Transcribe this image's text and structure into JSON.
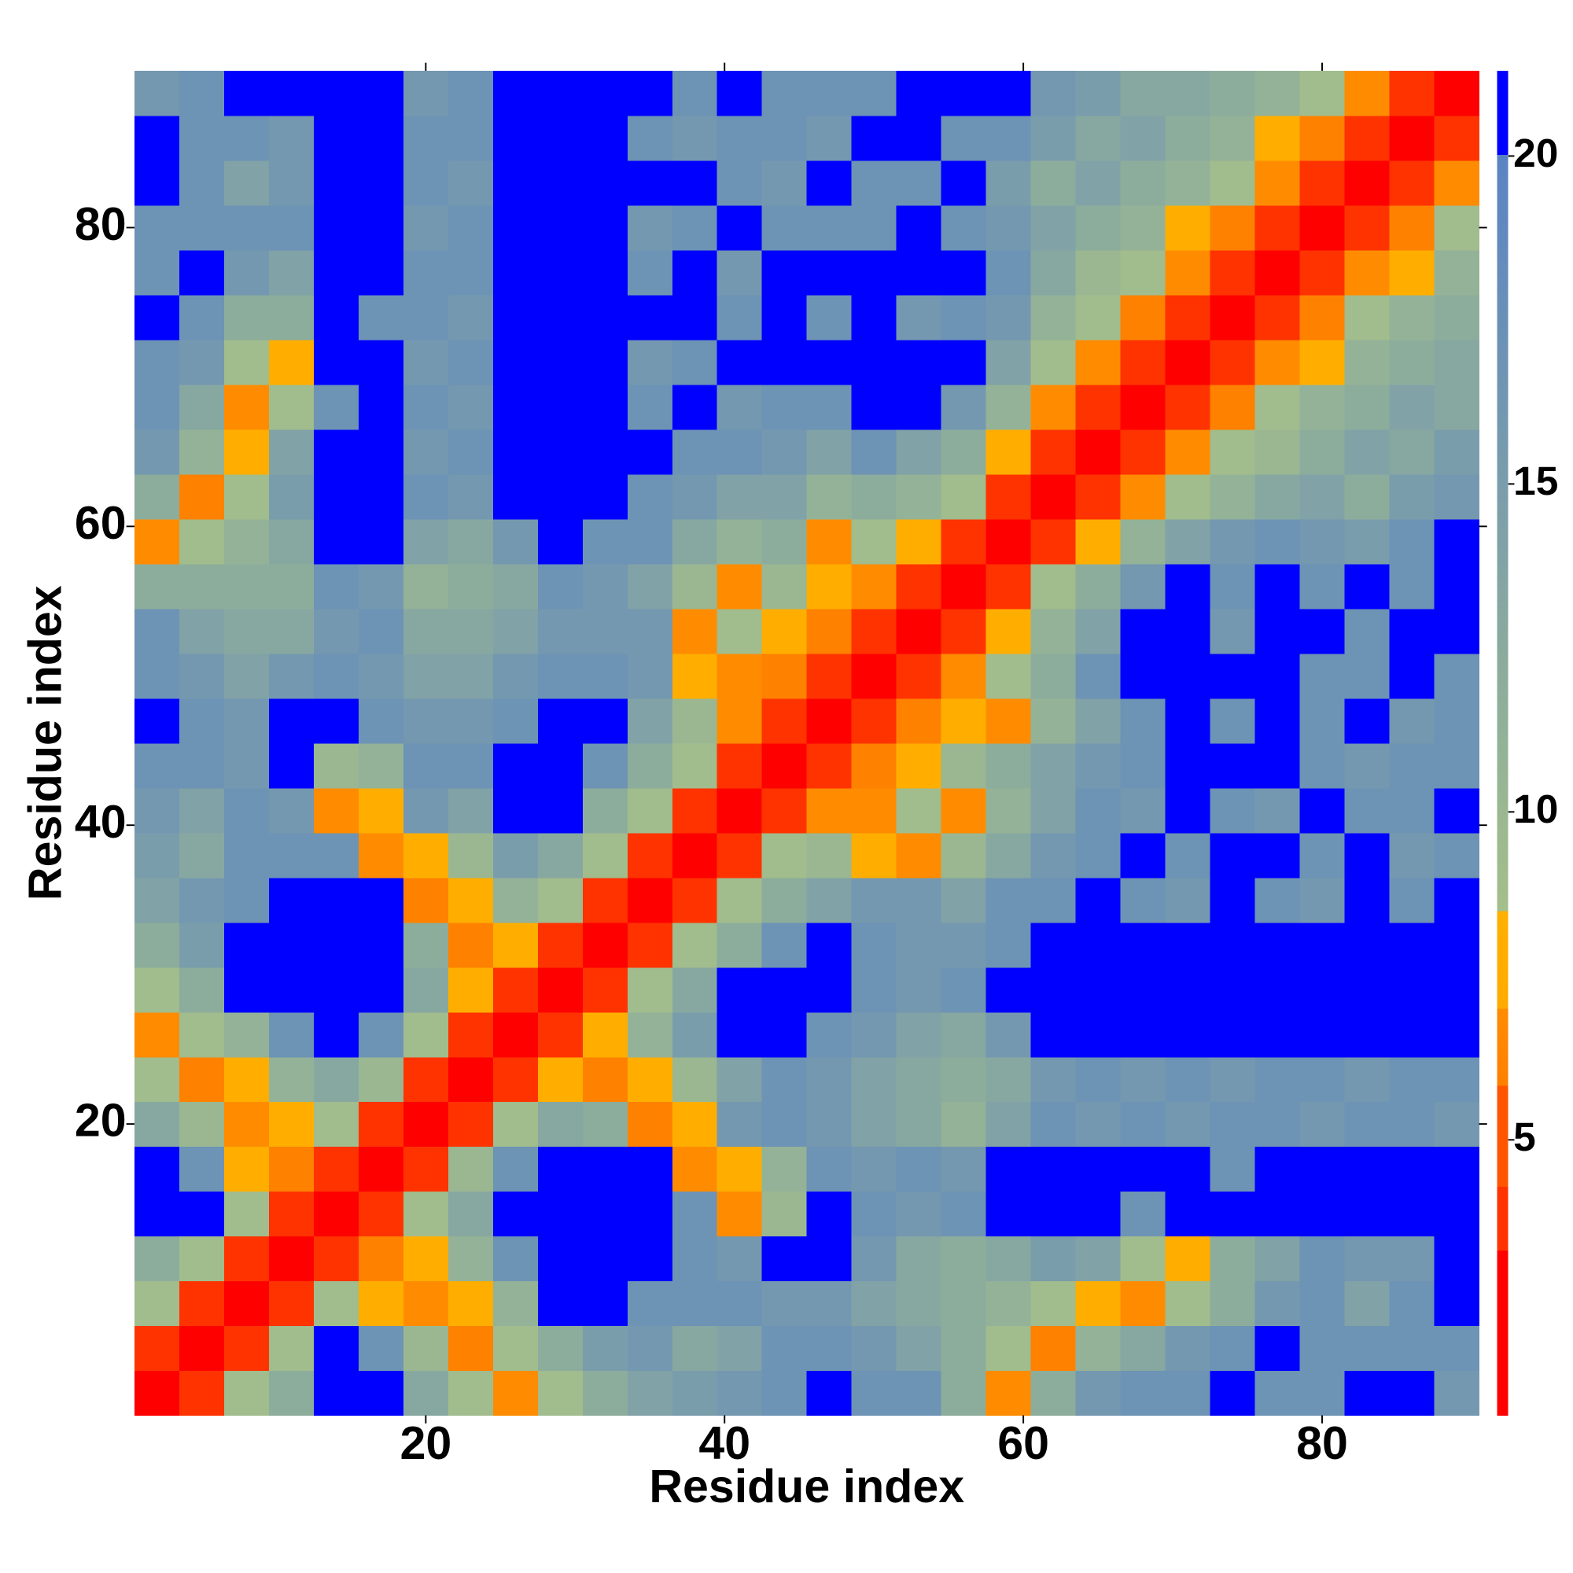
{
  "chart_data": {
    "type": "heatmap",
    "xlabel": "Residue index",
    "ylabel": "Residue index",
    "x": [
      2,
      5,
      8,
      11,
      14,
      17,
      20,
      23,
      26,
      29,
      32,
      35,
      38,
      41,
      44,
      47,
      50,
      53,
      56,
      59,
      62,
      65,
      68,
      71,
      74,
      77,
      80,
      83,
      86,
      89
    ],
    "y": [
      2,
      5,
      8,
      11,
      14,
      17,
      20,
      23,
      26,
      29,
      32,
      35,
      38,
      41,
      44,
      47,
      50,
      53,
      56,
      59,
      62,
      65,
      68,
      71,
      74,
      77,
      80,
      83,
      86,
      89
    ],
    "xlim": [
      0.5,
      90.5
    ],
    "ylim": [
      0.5,
      90.5
    ],
    "xticks": [
      20,
      40,
      60,
      80
    ],
    "yticks": [
      20,
      40,
      60,
      80
    ],
    "zlim": [
      0.8,
      21.3
    ],
    "zticks": [
      5,
      10,
      15,
      20
    ],
    "colorscale": [
      [
        0.8,
        "#ff0000"
      ],
      [
        3.3,
        "#ff0000"
      ],
      [
        3.3,
        "#ff3300"
      ],
      [
        4.3,
        "#ff3300"
      ],
      [
        4.3,
        "#ff5500"
      ],
      [
        5.8,
        "#ff5500"
      ],
      [
        5.8,
        "#ff7f00"
      ],
      [
        7,
        "#ff8c00"
      ],
      [
        7,
        "#ffaa00"
      ],
      [
        8.5,
        "#ffb000"
      ],
      [
        8.5,
        "#a4bf8a"
      ],
      [
        20,
        "#5a83c4"
      ],
      [
        20,
        "#0000ff"
      ],
      [
        21.3,
        "#0000ff"
      ]
    ],
    "z": [
      [
        2,
        4,
        9,
        12,
        21,
        21,
        13,
        9,
        7,
        9,
        12,
        14,
        15,
        16,
        17,
        21,
        17,
        17,
        12,
        7,
        12,
        16,
        17,
        17,
        21,
        17,
        17,
        21,
        21,
        16
      ],
      [
        4,
        2,
        4,
        9,
        21,
        17,
        10,
        6,
        9,
        12,
        15,
        16,
        13,
        14,
        17,
        17,
        16,
        14,
        12,
        9,
        6,
        11,
        13,
        16,
        17,
        21,
        17,
        17,
        17,
        17
      ],
      [
        9,
        4,
        2,
        4,
        9,
        8,
        7,
        8,
        11,
        21,
        21,
        17,
        17,
        17,
        16,
        16,
        14,
        13,
        12,
        11,
        9,
        8,
        7,
        9,
        12,
        16,
        17,
        14,
        17,
        21
      ],
      [
        12,
        9,
        4,
        2,
        4,
        6,
        8,
        11,
        17,
        21,
        21,
        21,
        17,
        16,
        21,
        21,
        16,
        13,
        12,
        13,
        15,
        14,
        9,
        8,
        12,
        14,
        17,
        16,
        16,
        21
      ],
      [
        21,
        21,
        9,
        4,
        2,
        4,
        9,
        13,
        21,
        21,
        21,
        21,
        17,
        7,
        10,
        21,
        17,
        16,
        17,
        21,
        21,
        21,
        17,
        21,
        21,
        21,
        21,
        21,
        21,
        21
      ],
      [
        21,
        17,
        8,
        6,
        4,
        2,
        4,
        10,
        17,
        21,
        21,
        21,
        7,
        8,
        11,
        17,
        16,
        17,
        16,
        21,
        21,
        21,
        21,
        21,
        17,
        21,
        21,
        21,
        21,
        21
      ],
      [
        13,
        10,
        7,
        8,
        9,
        4,
        2,
        4,
        9,
        13,
        12,
        6,
        8,
        16,
        17,
        16,
        14,
        13,
        11,
        14,
        17,
        16,
        17,
        16,
        17,
        17,
        16,
        17,
        17,
        16
      ],
      [
        9,
        6,
        8,
        11,
        13,
        10,
        4,
        2,
        4,
        8,
        6,
        8,
        10,
        14,
        17,
        16,
        14,
        13,
        12,
        13,
        16,
        17,
        16,
        17,
        16,
        17,
        17,
        16,
        17,
        17
      ],
      [
        7,
        9,
        11,
        17,
        21,
        17,
        9,
        4,
        2,
        4,
        8,
        11,
        15,
        21,
        21,
        17,
        16,
        14,
        13,
        16,
        21,
        21,
        21,
        21,
        21,
        21,
        21,
        21,
        21,
        21
      ],
      [
        9,
        12,
        21,
        21,
        21,
        21,
        13,
        8,
        4,
        2,
        4,
        9,
        13,
        21,
        21,
        21,
        17,
        16,
        17,
        21,
        21,
        21,
        21,
        21,
        21,
        21,
        21,
        21,
        21,
        21
      ],
      [
        12,
        15,
        21,
        21,
        21,
        21,
        12,
        6,
        8,
        4,
        2,
        4,
        9,
        12,
        17,
        21,
        17,
        16,
        16,
        17,
        21,
        21,
        21,
        21,
        21,
        21,
        21,
        21,
        21,
        21
      ],
      [
        14,
        16,
        17,
        21,
        21,
        21,
        6,
        8,
        11,
        9,
        4,
        2,
        4,
        9,
        12,
        14,
        16,
        16,
        14,
        17,
        17,
        21,
        17,
        16,
        21,
        17,
        16,
        21,
        17,
        21
      ],
      [
        15,
        13,
        17,
        17,
        17,
        7,
        8,
        10,
        15,
        13,
        9,
        4,
        2,
        4,
        9,
        10,
        8,
        7,
        10,
        13,
        16,
        17,
        21,
        17,
        21,
        21,
        17,
        21,
        16,
        17
      ],
      [
        16,
        14,
        17,
        16,
        7,
        8,
        16,
        14,
        21,
        21,
        12,
        9,
        4,
        2,
        4,
        7,
        7,
        9,
        7,
        11,
        14,
        17,
        16,
        21,
        17,
        16,
        21,
        17,
        17,
        21
      ],
      [
        17,
        17,
        16,
        21,
        10,
        11,
        17,
        17,
        21,
        21,
        17,
        12,
        9,
        4,
        2,
        4,
        6,
        8,
        10,
        12,
        14,
        16,
        17,
        21,
        21,
        21,
        17,
        16,
        17,
        17
      ],
      [
        21,
        17,
        16,
        21,
        21,
        17,
        16,
        16,
        17,
        21,
        21,
        14,
        10,
        7,
        4,
        2,
        4,
        6,
        8,
        7,
        11,
        14,
        17,
        21,
        17,
        21,
        17,
        21,
        16,
        17
      ],
      [
        17,
        16,
        14,
        16,
        17,
        16,
        14,
        14,
        16,
        17,
        17,
        16,
        8,
        7,
        6,
        4,
        2,
        4,
        7,
        9,
        12,
        17,
        21,
        21,
        21,
        21,
        17,
        17,
        21,
        17
      ],
      [
        17,
        14,
        13,
        13,
        16,
        17,
        13,
        13,
        14,
        16,
        16,
        16,
        7,
        9,
        8,
        6,
        4,
        2,
        4,
        8,
        11,
        14,
        21,
        21,
        16,
        21,
        21,
        17,
        21,
        21
      ],
      [
        12,
        12,
        12,
        12,
        17,
        16,
        11,
        12,
        13,
        17,
        16,
        14,
        10,
        7,
        10,
        8,
        7,
        4,
        2,
        4,
        9,
        12,
        16,
        21,
        17,
        21,
        17,
        21,
        17,
        21
      ],
      [
        7,
        9,
        11,
        13,
        21,
        21,
        14,
        13,
        16,
        21,
        17,
        17,
        13,
        11,
        12,
        7,
        9,
        8,
        4,
        2,
        4,
        8,
        11,
        14,
        16,
        17,
        16,
        15,
        17,
        21
      ],
      [
        12,
        6,
        9,
        15,
        21,
        21,
        17,
        16,
        21,
        21,
        21,
        17,
        16,
        14,
        14,
        11,
        12,
        11,
        9,
        4,
        2,
        4,
        7,
        9,
        11,
        13,
        14,
        12,
        15,
        16
      ],
      [
        16,
        11,
        8,
        14,
        21,
        21,
        16,
        17,
        21,
        21,
        21,
        21,
        17,
        17,
        16,
        14,
        17,
        14,
        12,
        8,
        4,
        2,
        4,
        7,
        9,
        10,
        12,
        14,
        13,
        15
      ],
      [
        17,
        13,
        7,
        9,
        17,
        21,
        17,
        16,
        21,
        21,
        21,
        17,
        21,
        16,
        17,
        17,
        21,
        21,
        16,
        11,
        7,
        4,
        2,
        4,
        6,
        9,
        11,
        12,
        14,
        13
      ],
      [
        17,
        16,
        9,
        8,
        21,
        21,
        16,
        17,
        21,
        21,
        21,
        16,
        17,
        21,
        21,
        21,
        21,
        21,
        21,
        14,
        9,
        7,
        4,
        2,
        4,
        7,
        8,
        11,
        12,
        13
      ],
      [
        21,
        17,
        12,
        12,
        21,
        17,
        17,
        16,
        21,
        21,
        21,
        21,
        21,
        17,
        21,
        17,
        21,
        16,
        17,
        16,
        11,
        9,
        6,
        4,
        2,
        4,
        6,
        9,
        11,
        12
      ],
      [
        17,
        21,
        16,
        14,
        21,
        21,
        17,
        17,
        21,
        21,
        21,
        17,
        21,
        16,
        21,
        21,
        21,
        21,
        21,
        17,
        13,
        10,
        9,
        7,
        4,
        2,
        4,
        7,
        8,
        11
      ],
      [
        17,
        17,
        17,
        17,
        21,
        21,
        16,
        17,
        21,
        21,
        21,
        16,
        17,
        21,
        17,
        17,
        17,
        21,
        17,
        16,
        14,
        12,
        11,
        8,
        6,
        4,
        2,
        4,
        6,
        9
      ],
      [
        21,
        17,
        14,
        16,
        21,
        21,
        17,
        16,
        21,
        21,
        21,
        21,
        21,
        17,
        16,
        21,
        17,
        17,
        21,
        15,
        12,
        14,
        12,
        11,
        9,
        7,
        4,
        2,
        4,
        7
      ],
      [
        21,
        17,
        17,
        16,
        21,
        21,
        17,
        17,
        21,
        21,
        21,
        17,
        16,
        17,
        17,
        16,
        21,
        21,
        17,
        17,
        15,
        13,
        14,
        12,
        11,
        8,
        6,
        4,
        2,
        4
      ],
      [
        16,
        17,
        21,
        21,
        21,
        21,
        16,
        17,
        21,
        21,
        21,
        21,
        17,
        21,
        17,
        17,
        17,
        21,
        21,
        21,
        16,
        15,
        13,
        13,
        12,
        11,
        9,
        7,
        4,
        2
      ]
    ]
  }
}
